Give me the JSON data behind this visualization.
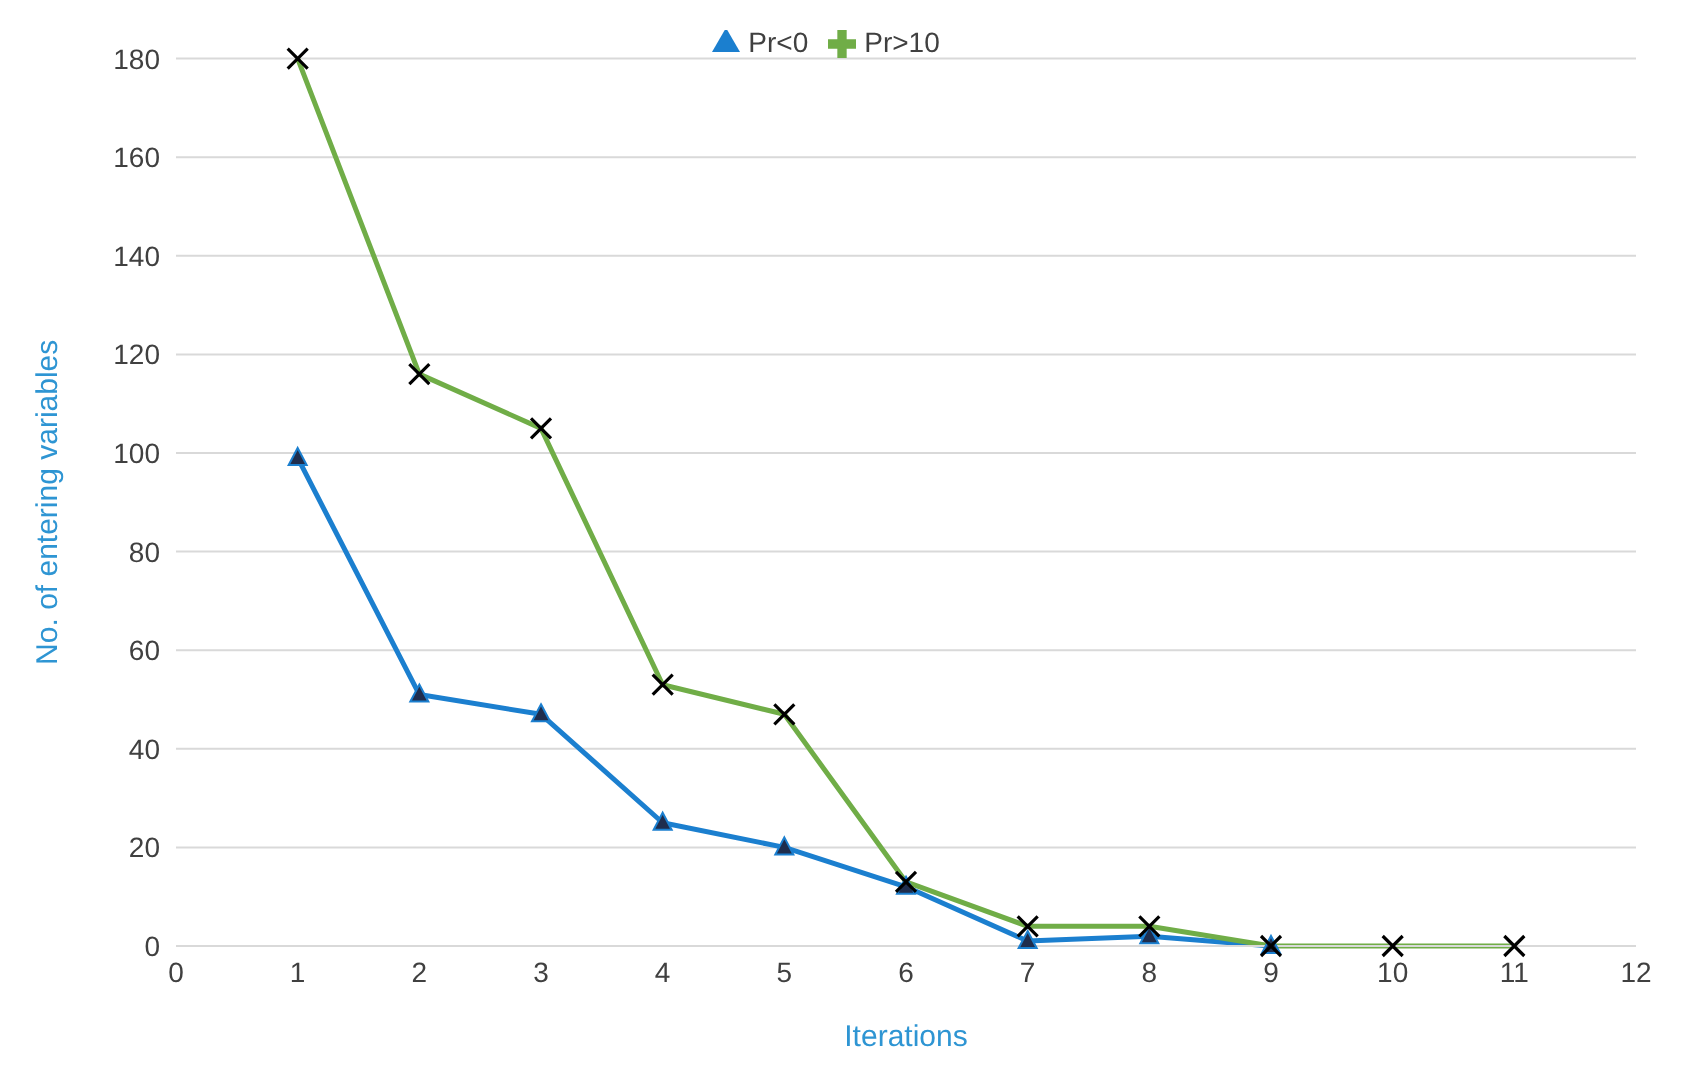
{
  "chart_data": {
    "type": "line",
    "xlabel": "Iterations",
    "ylabel": "No. of entering variables",
    "x": [
      1,
      2,
      3,
      4,
      5,
      6,
      7,
      8,
      9,
      10,
      11
    ],
    "series": [
      {
        "name": "Pr<0",
        "color": "#1b7fcf",
        "marker": "triangle",
        "values": [
          99,
          51,
          47,
          25,
          20,
          12,
          1,
          2,
          0,
          null,
          null
        ]
      },
      {
        "name": "Pr>10",
        "color": "#70ad47",
        "marker": "cross",
        "values": [
          180,
          116,
          105,
          53,
          47,
          13,
          4,
          4,
          0,
          0,
          0
        ]
      }
    ],
    "xlim": [
      0,
      12
    ],
    "xticks": [
      0,
      1,
      2,
      3,
      4,
      5,
      6,
      7,
      8,
      9,
      10,
      11,
      12
    ],
    "ylim": [
      0,
      180
    ],
    "yticks": [
      0,
      20,
      40,
      60,
      80,
      100,
      120,
      140,
      160,
      180
    ],
    "grid": "y",
    "legend": "top",
    "line_style": "solid"
  }
}
